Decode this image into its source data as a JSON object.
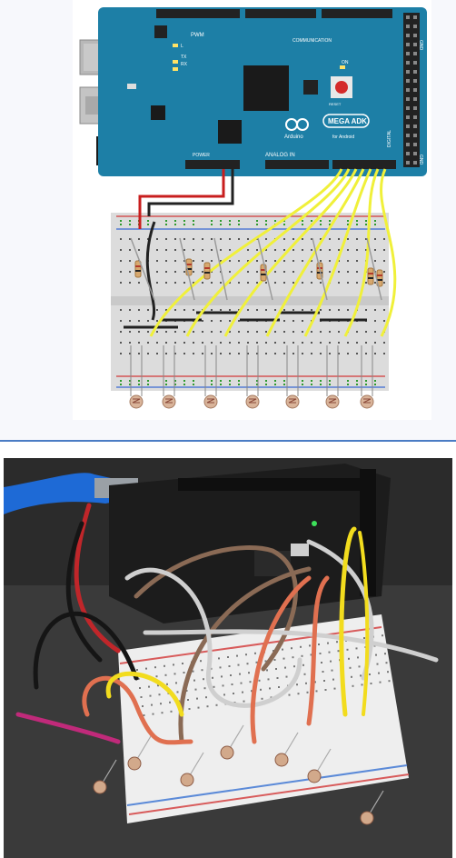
{
  "diagram": {
    "board": {
      "logo_text": "Arduino",
      "model_badge": "MEGA ADK",
      "badge_subtext": "for Android",
      "pwm_label": "PWM",
      "comm_label": "COMMUNICATION",
      "analog_label": "ANALOG IN",
      "digital_label": "DIGITAL",
      "power_label": "POWER",
      "reset_label": "RESET",
      "on_label": "ON",
      "tx_label": "TX",
      "rx_label": "RX",
      "l_label": "L",
      "gnd_label": "GND",
      "colors": {
        "board": "#1d7fa6",
        "board_dark": "#156a8c",
        "header": "#222222",
        "chip": "#1a1a1a",
        "usb_silver": "#b8b8b8",
        "reset_red": "#d42a2a"
      }
    },
    "breadboard": {
      "colors": {
        "body": "#dcdcdc",
        "rail_red": "#d23a3a",
        "rail_blue": "#3a6ad2",
        "wire_yellow": "#f0f03a",
        "wire_red": "#c81e1e",
        "wire_black": "#222222",
        "resistor": "#d7a86e"
      },
      "sensor_count": 7
    }
  },
  "photo": {
    "description_icon": "photo-icon",
    "colors": {
      "table": "#3a3a3a",
      "usb_cable": "#1e6ad6",
      "board": "#1c1c1c",
      "breadboard": "#eeeeee",
      "wire_gray": "#cfcfcf",
      "wire_brown": "#8a6a55",
      "wire_orange": "#e07050",
      "wire_yellow": "#f2dc1e",
      "wire_red": "#c0262a",
      "wire_black": "#151515"
    }
  }
}
